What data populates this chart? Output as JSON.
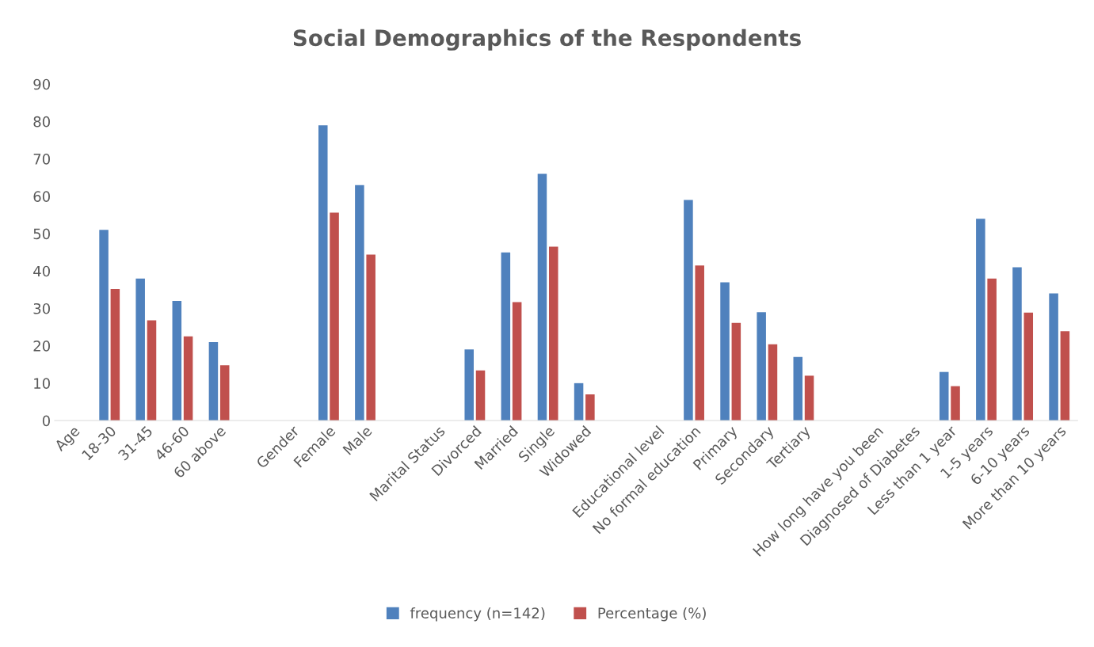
{
  "chart_data": {
    "type": "bar",
    "title": "Social Demographics of the Respondents",
    "categories": [
      "Age",
      "18-30",
      "31-45",
      "46-60",
      "60 above",
      null,
      "Gender",
      "Female",
      "Male",
      null,
      "Marital Status",
      "Divorced",
      "Married",
      "Single",
      "Widowed",
      null,
      "Educational level",
      "No formal education",
      "Primary",
      "Secondary",
      "Tertiary",
      null,
      "How long have you been",
      "Diagnosed of Diabetes",
      "Less than 1 year",
      "1-5 years",
      "6-10 years",
      "More than 10 years"
    ],
    "series": [
      {
        "name": "frequency (n=142)",
        "color": "#4f81bd",
        "values": [
          null,
          51,
          38,
          32,
          21,
          null,
          null,
          79,
          63,
          null,
          null,
          19,
          45,
          66,
          10,
          null,
          null,
          59,
          37,
          29,
          17,
          null,
          null,
          null,
          13,
          54,
          41,
          34
        ]
      },
      {
        "name": "Percentage (%)",
        "color": "#c0504d",
        "values": [
          null,
          35.2,
          26.8,
          22.5,
          14.8,
          null,
          null,
          55.6,
          44.4,
          null,
          null,
          13.4,
          31.7,
          46.5,
          7.0,
          null,
          null,
          41.5,
          26.1,
          20.4,
          12.0,
          null,
          null,
          null,
          9.2,
          38.0,
          28.9,
          23.9
        ]
      }
    ],
    "ylim": [
      0,
      90
    ],
    "yticks": [
      0,
      10,
      20,
      30,
      40,
      50,
      60,
      70,
      80,
      90
    ],
    "grid": false,
    "legend": "bottom"
  }
}
